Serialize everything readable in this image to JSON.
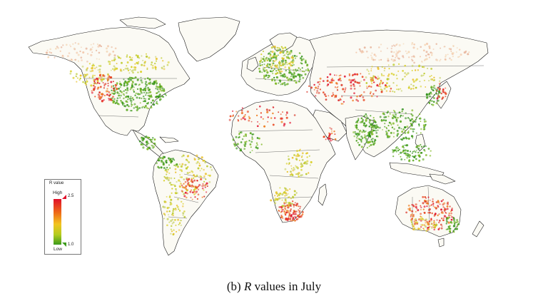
{
  "legend": {
    "title": "R value",
    "high_label": "High",
    "low_label": "Low",
    "max_value": "2.5",
    "min_value": "1.0",
    "color_high": "#e0102a",
    "color_mid": "#f2c420",
    "color_low": "#3c9a1c"
  },
  "caption": {
    "prefix": "(b) ",
    "variable": "R",
    "suffix": " values in July"
  }
}
